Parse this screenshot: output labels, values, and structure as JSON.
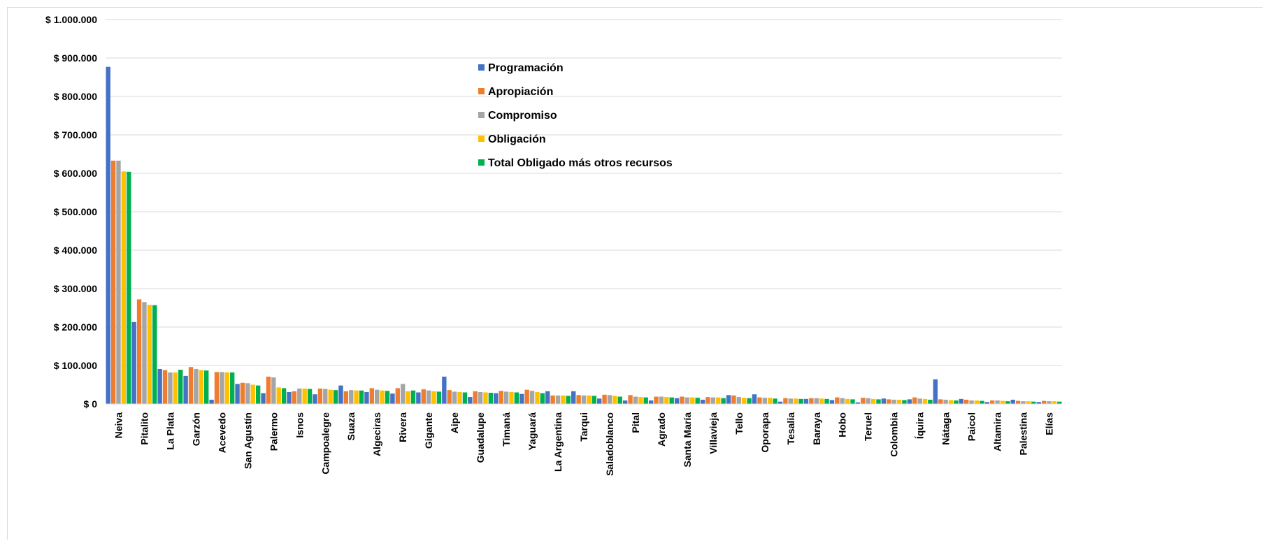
{
  "chart_data": {
    "type": "bar",
    "title": "",
    "xlabel": "",
    "ylabel": "",
    "ylim": [
      0,
      1000000
    ],
    "y_ticks": [
      0,
      100000,
      200000,
      300000,
      400000,
      500000,
      600000,
      700000,
      800000,
      900000,
      1000000
    ],
    "y_tick_labels": [
      "$ 0",
      "$ 100.000",
      "$ 200.000",
      "$ 300.000",
      "$ 400.000",
      "$ 500.000",
      "$ 600.000",
      "$ 700.000",
      "$ 800.000",
      "$ 900.000",
      "$ 1.000.000"
    ],
    "grid": true,
    "legend_position": "top-center",
    "categories": [
      "Neiva",
      "Pitalito",
      "La Plata",
      "Garzón",
      "Acevedo",
      "San Agustín",
      "Palermo",
      "Isnos",
      "Campoalegre",
      "Suaza",
      "Algeciras",
      "Rivera",
      "Gigante",
      "Aipe",
      "Guadalupe",
      "Timaná",
      "Yaguará",
      "La Argentina",
      "Tarqui",
      "Saladoblanco",
      "Pital",
      "Agrado",
      "Santa María",
      "Villavieja",
      "Tello",
      "Oporapa",
      "Tesalia",
      "Baraya",
      "Hobo",
      "Teruel",
      "Colombia",
      "Íquira",
      "Nátaga",
      "Paicol",
      "Altamira",
      "Palestina",
      "Elías"
    ],
    "series": [
      {
        "name": "Programación",
        "color": "#4472C4",
        "values": [
          877000,
          213000,
          91000,
          73000,
          11000,
          52000,
          28000,
          31000,
          25000,
          48000,
          31000,
          27000,
          30000,
          71000,
          18000,
          28000,
          26000,
          33000,
          33000,
          14000,
          9000,
          9000,
          15000,
          11000,
          23000,
          25000,
          6000,
          13000,
          10000,
          4000,
          14000,
          12000,
          64000,
          13000,
          5000,
          11000,
          5000
        ]
      },
      {
        "name": "Apropiación",
        "color": "#ED7D31",
        "values": [
          633000,
          272000,
          88000,
          96000,
          83000,
          55000,
          71000,
          33000,
          40000,
          33000,
          41000,
          41000,
          38000,
          36000,
          33000,
          34000,
          37000,
          22000,
          23000,
          24000,
          23000,
          19000,
          19000,
          18000,
          22000,
          17000,
          15000,
          15000,
          17000,
          16000,
          12000,
          17000,
          12000,
          11000,
          9000,
          8000,
          8000
        ]
      },
      {
        "name": "Compromiso",
        "color": "#A5A5A5",
        "values": [
          633000,
          265000,
          82000,
          91000,
          83000,
          54000,
          69000,
          40000,
          39000,
          36000,
          37000,
          52000,
          35000,
          32000,
          31000,
          32000,
          34000,
          22000,
          22000,
          23000,
          19000,
          19000,
          17000,
          17000,
          18000,
          16000,
          14000,
          15000,
          15000,
          15000,
          11000,
          14000,
          11000,
          9000,
          9000,
          7000,
          7000
        ]
      },
      {
        "name": "Obligación",
        "color": "#FFC000",
        "values": [
          605000,
          258000,
          82000,
          88000,
          82000,
          50000,
          43000,
          40000,
          37000,
          35000,
          35000,
          33000,
          33000,
          31000,
          30000,
          31000,
          31000,
          22000,
          22000,
          21000,
          18000,
          18000,
          17000,
          17000,
          16000,
          16000,
          14000,
          14000,
          13000,
          13000,
          11000,
          13000,
          10000,
          9000,
          8000,
          7000,
          7000
        ]
      },
      {
        "name": "Total Obligado más otros recursos",
        "color": "#00B050",
        "values": [
          604000,
          257000,
          89000,
          87000,
          82000,
          48000,
          41000,
          39000,
          36000,
          35000,
          34000,
          35000,
          32000,
          30000,
          29000,
          30000,
          28000,
          21000,
          21000,
          19000,
          17000,
          17000,
          16000,
          15000,
          15000,
          14000,
          13000,
          13000,
          12000,
          12000,
          10000,
          11000,
          9000,
          8000,
          7000,
          6000,
          6000
        ]
      }
    ]
  }
}
